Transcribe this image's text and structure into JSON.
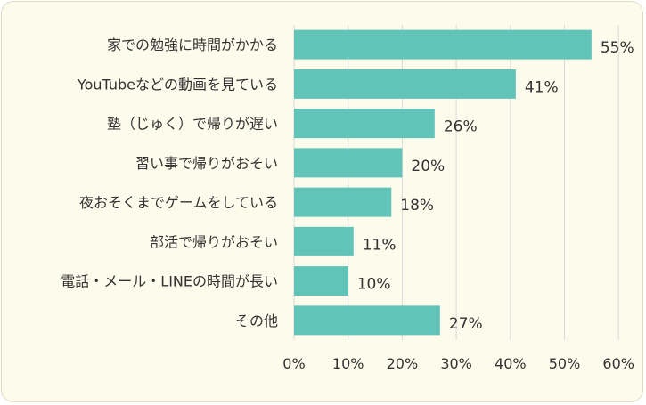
{
  "chart_data": {
    "type": "bar",
    "orientation": "horizontal",
    "categories": [
      "家での勉強に時間がかかる",
      "YouTubeなどの動画を見ている",
      "塾（じゅく）で帰りが遅い",
      "習い事で帰りがおそい",
      "夜おそくまでゲームをしている",
      "部活で帰りがおそい",
      "電話・メール・LINEの時間が長い",
      "その他"
    ],
    "values": [
      55,
      41,
      26,
      20,
      18,
      11,
      10,
      27
    ],
    "value_labels": [
      "55%",
      "41%",
      "26%",
      "20%",
      "18%",
      "11%",
      "10%",
      "27%"
    ],
    "x_ticks": [
      0,
      10,
      20,
      30,
      40,
      50,
      60
    ],
    "x_tick_labels": [
      "0%",
      "10%",
      "20%",
      "30%",
      "40%",
      "50%",
      "60%"
    ],
    "xlim": [
      0,
      60
    ],
    "title": "",
    "xlabel": "",
    "ylabel": "",
    "grid": "vertical",
    "legend": "none",
    "colors": {
      "bar": "#62c3b9",
      "grid": "#d9d9d9",
      "background": "#fdfbeb",
      "text": "#333333"
    }
  }
}
